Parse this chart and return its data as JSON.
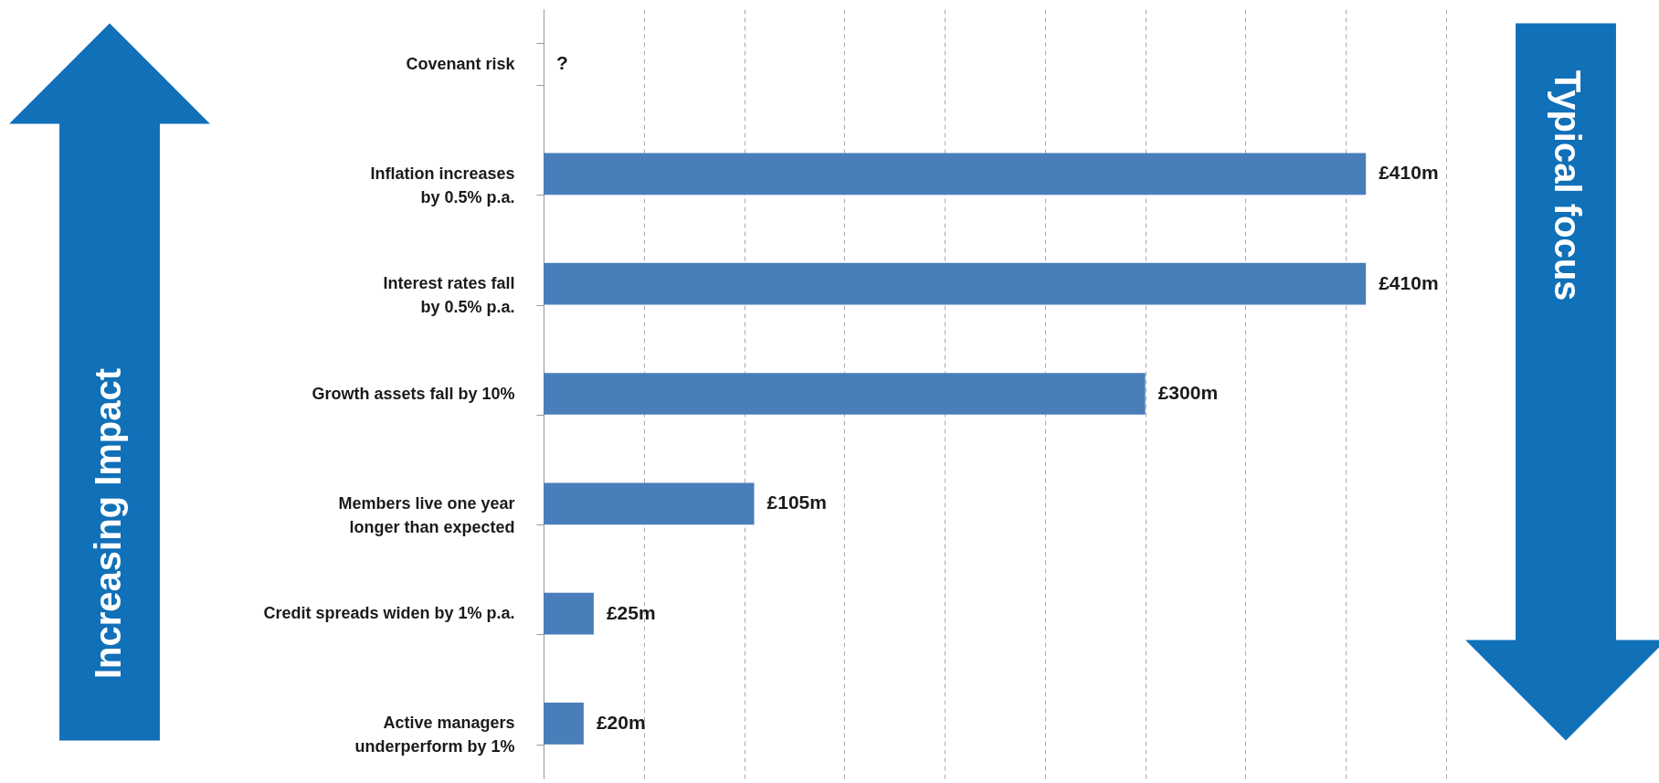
{
  "chart_data": {
    "type": "bar",
    "orientation": "horizontal",
    "categories": [
      "Covenant risk",
      "Inflation increases\nby 0.5% p.a.",
      "Interest rates fall\nby 0.5% p.a.",
      "Growth assets fall by 10%",
      "Members live one year\nlonger than expected",
      "Credit spreads widen by 1% p.a.",
      "Active managers\nunderperform by 1%"
    ],
    "values": [
      null,
      410,
      410,
      300,
      105,
      25,
      20
    ],
    "value_labels": [
      "?",
      "£410m",
      "£410m",
      "£300m",
      "£105m",
      "£25m",
      "£20m"
    ],
    "color": "#4a7ebb",
    "xlim": [
      0,
      450
    ],
    "xticks": [
      {
        "value": 0,
        "label": null
      },
      {
        "value": 50,
        "label": null
      },
      {
        "value": 100,
        "label": null
      },
      {
        "value": 150,
        "label": null
      },
      {
        "value": 200,
        "label": null
      },
      {
        "value": 250,
        "label": null
      },
      {
        "value": 300,
        "label": null
      },
      {
        "value": 350,
        "label": null
      },
      {
        "value": 400,
        "label": null
      },
      {
        "value": 450,
        "label": null
      }
    ],
    "grid": "x",
    "tick_labels": "y",
    "annotations": [
      "Increasing Impact",
      "Typical focus"
    ]
  }
}
